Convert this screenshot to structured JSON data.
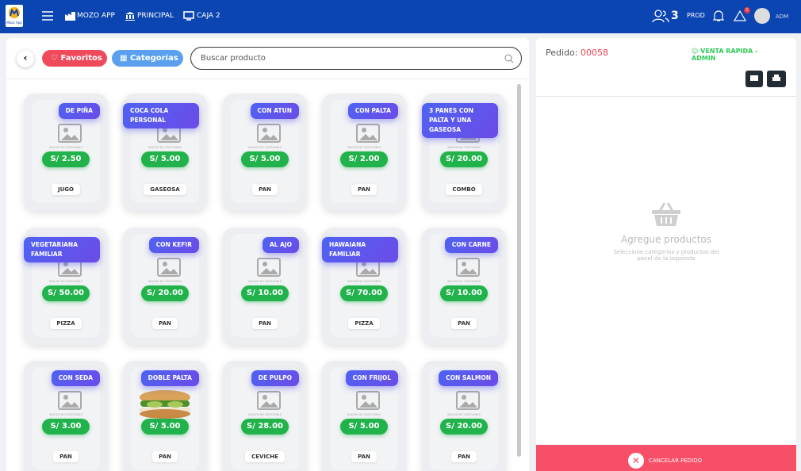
{
  "nav": {
    "logo": "Mozo App",
    "app": "MOZO APP",
    "principal": "PRINCIPAL",
    "caja": "CAJA 2",
    "users": "3",
    "env": "PROD",
    "alerts": "1",
    "user": "ADM"
  },
  "toolbar": {
    "favorites": "Favoritos",
    "categories": "Categorías",
    "search_placeholder": "Buscar producto"
  },
  "placeholder_text": "IMAGEN NO DISPONIBLE",
  "products": [
    {
      "name": "DE PIÑA",
      "price": "S/ 2.50",
      "category": "JUGO"
    },
    {
      "name": "COCA COLA PERSONAL",
      "price": "S/ 5.00",
      "category": "GASEOSA"
    },
    {
      "name": "CON ATUN",
      "price": "S/ 5.00",
      "category": "PAN"
    },
    {
      "name": "CON PALTA",
      "price": "S/ 2.00",
      "category": "PAN"
    },
    {
      "name": "3 PANES CON PALTA Y UNA GASEOSA",
      "price": "S/ 20.00",
      "category": "COMBO"
    },
    {
      "name": "VEGETARIANA FAMILIAR",
      "price": "S/ 50.00",
      "category": "PIZZA"
    },
    {
      "name": "CON KEFIR",
      "price": "S/ 20.00",
      "category": "PAN"
    },
    {
      "name": "AL AJO",
      "price": "S/ 10.00",
      "category": "PAN"
    },
    {
      "name": "HAWAIANA FAMILIAR",
      "price": "S/ 70.00",
      "category": "PIZZA"
    },
    {
      "name": "CON CARNE",
      "price": "S/ 10.00",
      "category": "PAN"
    },
    {
      "name": "CON SEDA",
      "price": "S/ 3.00",
      "category": "PAN"
    },
    {
      "name": "DOBLE PALTA",
      "price": "S/ 5.00",
      "category": "PAN"
    },
    {
      "name": "DE PULPO",
      "price": "S/ 28.00",
      "category": "CEVICHE"
    },
    {
      "name": "CON FRIJOL",
      "price": "S/ 5.00",
      "category": "PAN"
    },
    {
      "name": "CON SALMON",
      "price": "S/ 20.00",
      "category": "PAN"
    }
  ],
  "order": {
    "label": "Pedido:",
    "number": "00058",
    "client": "VENTA RAPIDA - ADMIN",
    "empty_title": "Agregue productos",
    "empty_hint": "Seleccione categorías y productos del panel de la izquierda",
    "cancel": "CANCELAR PEDIDO"
  }
}
